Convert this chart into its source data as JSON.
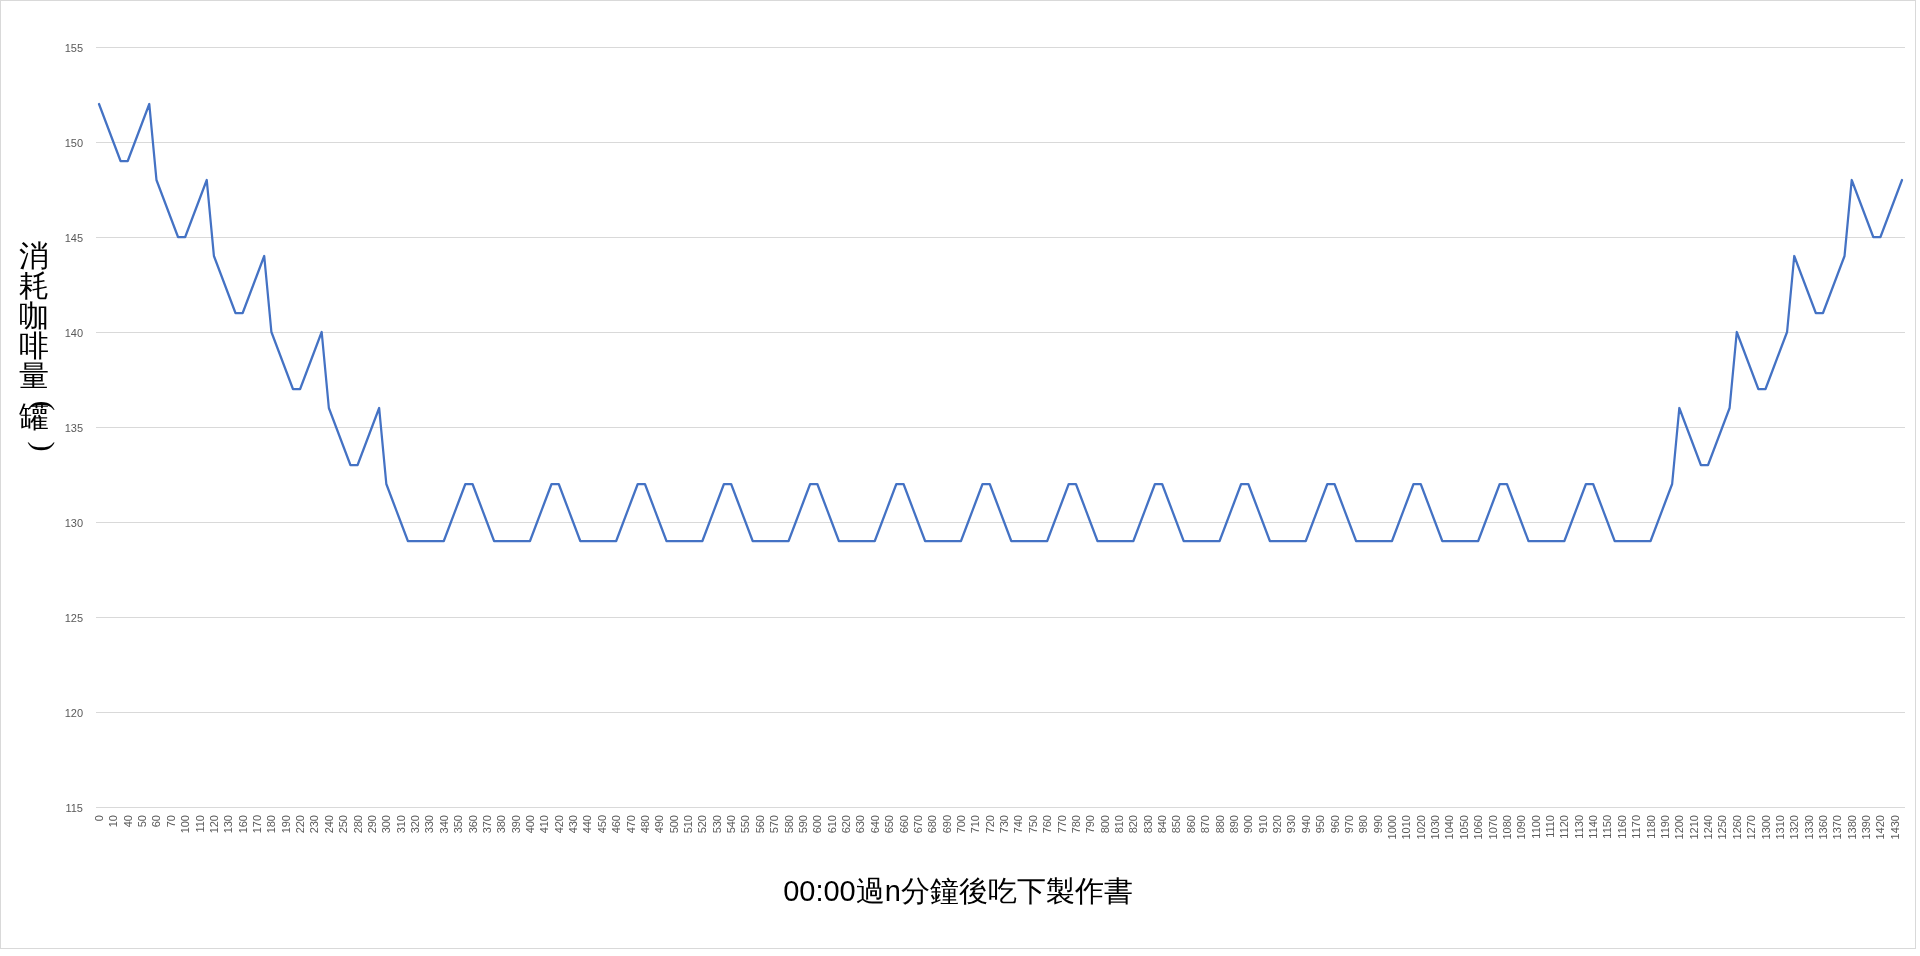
{
  "chart_data": {
    "type": "line",
    "xlabel": "00:00過n分鐘後吃下製作書",
    "ylabel": "消耗咖啡量(罐)",
    "categories": [
      "0",
      null,
      "10",
      null,
      "40",
      null,
      "50",
      null,
      "60",
      null,
      "70",
      null,
      "100",
      null,
      "110",
      null,
      "120",
      null,
      "130",
      null,
      "160",
      null,
      "170",
      null,
      "180",
      null,
      "190",
      null,
      "220",
      null,
      "230",
      null,
      "240",
      null,
      "250",
      null,
      "280",
      null,
      "290",
      null,
      "300",
      null,
      "310",
      null,
      "320",
      null,
      "330",
      null,
      "340",
      null,
      "350",
      null,
      "360",
      null,
      "370",
      null,
      "380",
      null,
      "390",
      null,
      "400",
      null,
      "410",
      null,
      "420",
      null,
      "430",
      null,
      "440",
      null,
      "450",
      null,
      "460",
      null,
      "470",
      null,
      "480",
      null,
      "490",
      null,
      "500",
      null,
      "510",
      null,
      "520",
      null,
      "530",
      null,
      "540",
      null,
      "550",
      null,
      "560",
      null,
      "570",
      null,
      "580",
      null,
      "590",
      null,
      "600",
      null,
      "610",
      null,
      "620",
      null,
      "630",
      null,
      "640",
      null,
      "650",
      null,
      "660",
      null,
      "670",
      null,
      "680",
      null,
      "690",
      null,
      "700",
      null,
      "710",
      null,
      "720",
      null,
      "730",
      null,
      "740",
      null,
      "750",
      null,
      "760",
      null,
      "770",
      null,
      "780",
      null,
      "790",
      null,
      "800",
      null,
      "810",
      null,
      "820",
      null,
      "830",
      null,
      "840",
      null,
      "850",
      null,
      "860",
      null,
      "870",
      null,
      "880",
      null,
      "890",
      null,
      "900",
      null,
      "910",
      null,
      "920",
      null,
      "930",
      null,
      "940",
      null,
      "950",
      null,
      "960",
      null,
      "970",
      null,
      "980",
      null,
      "990",
      null,
      "1000",
      null,
      "1010",
      null,
      "1020",
      null,
      "1030",
      null,
      "1040",
      null,
      "1050",
      null,
      "1060",
      null,
      "1070",
      null,
      "1080",
      null,
      "1090",
      null,
      "1100",
      null,
      "1110",
      null,
      "1120",
      null,
      "1130",
      null,
      "1140",
      null,
      "1150",
      null,
      "1160",
      null,
      "1170",
      null,
      "1180",
      null,
      "1190",
      null,
      "1200",
      null,
      "1210",
      null,
      "1240",
      null,
      "1250",
      null,
      "1260",
      null,
      "1270",
      null,
      "1300",
      null,
      "1310",
      null,
      "1320",
      null,
      "1330",
      null,
      "1360",
      null,
      "1370",
      null,
      "1380",
      null,
      "1390",
      null,
      "1420",
      null,
      "1430",
      null
    ],
    "series": [
      {
        "color": "#4472c4",
        "values": [
          152,
          151,
          150,
          149,
          149,
          150,
          151,
          152,
          148,
          147,
          146,
          145,
          145,
          146,
          147,
          148,
          144,
          143,
          142,
          141,
          141,
          142,
          143,
          144,
          140,
          139,
          138,
          137,
          137,
          138,
          139,
          140,
          136,
          135,
          134,
          133,
          133,
          134,
          135,
          136,
          132,
          131,
          130,
          129,
          129,
          129,
          129,
          129,
          129,
          130,
          131,
          132,
          132,
          131,
          130,
          129,
          129,
          129,
          129,
          129,
          129,
          130,
          131,
          132,
          132,
          131,
          130,
          129,
          129,
          129,
          129,
          129,
          129,
          130,
          131,
          132,
          132,
          131,
          130,
          129,
          129,
          129,
          129,
          129,
          129,
          130,
          131,
          132,
          132,
          131,
          130,
          129,
          129,
          129,
          129,
          129,
          129,
          130,
          131,
          132,
          132,
          131,
          130,
          129,
          129,
          129,
          129,
          129,
          129,
          130,
          131,
          132,
          132,
          131,
          130,
          129,
          129,
          129,
          129,
          129,
          129,
          130,
          131,
          132,
          132,
          131,
          130,
          129,
          129,
          129,
          129,
          129,
          129,
          130,
          131,
          132,
          132,
          131,
          130,
          129,
          129,
          129,
          129,
          129,
          129,
          130,
          131,
          132,
          132,
          131,
          130,
          129,
          129,
          129,
          129,
          129,
          129,
          130,
          131,
          132,
          132,
          131,
          130,
          129,
          129,
          129,
          129,
          129,
          129,
          130,
          131,
          132,
          132,
          131,
          130,
          129,
          129,
          129,
          129,
          129,
          129,
          130,
          131,
          132,
          132,
          131,
          130,
          129,
          129,
          129,
          129,
          129,
          129,
          130,
          131,
          132,
          132,
          131,
          130,
          129,
          129,
          129,
          129,
          129,
          129,
          130,
          131,
          132,
          132,
          131,
          130,
          129,
          129,
          129,
          129,
          129,
          129,
          130,
          131,
          132,
          136,
          135,
          134,
          133,
          133,
          134,
          135,
          136,
          140,
          139,
          138,
          137,
          137,
          138,
          139,
          140,
          144,
          143,
          142,
          141,
          141,
          142,
          143,
          144,
          148,
          147,
          146,
          145,
          145,
          146,
          147,
          148
        ]
      }
    ],
    "ylim": [
      115,
      155
    ],
    "yticks": [
      115,
      120,
      125,
      130,
      135,
      140,
      145,
      150,
      155
    ],
    "grid": "y"
  }
}
